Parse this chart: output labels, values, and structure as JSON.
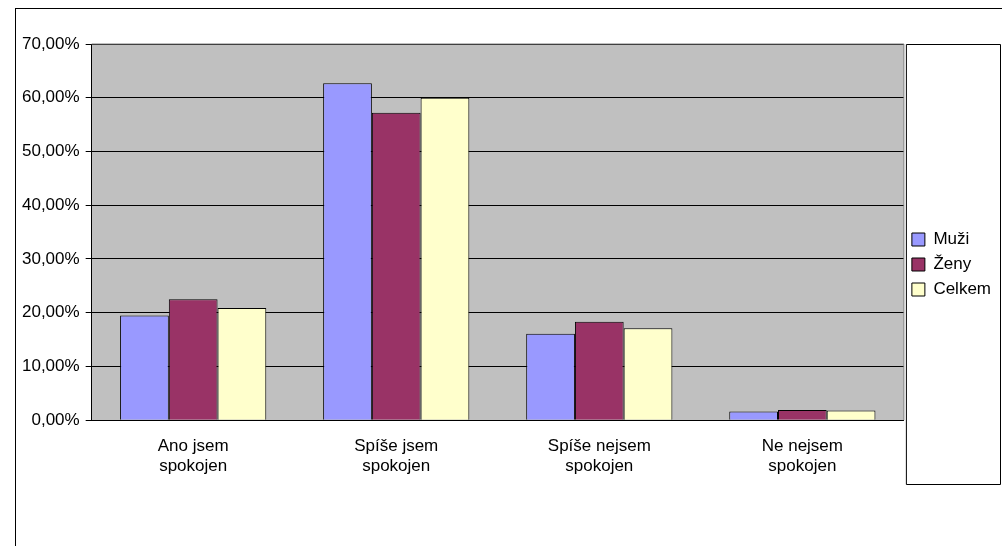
{
  "chart_data": {
    "type": "bar",
    "categories": [
      "Ano jsem spokojen",
      "Spíše jsem spokojen",
      "Spíše nejsem spokojen",
      "Ne nejsem spokojen"
    ],
    "series": [
      {
        "name": "Muži",
        "color": "#9999ff",
        "values": [
          19.5,
          62.7,
          16.1,
          1.6
        ]
      },
      {
        "name": "Ženy",
        "color": "#993366",
        "values": [
          22.5,
          57.2,
          18.3,
          1.9
        ]
      },
      {
        "name": "Celkem",
        "color": "#ffffcc",
        "values": [
          20.9,
          60.0,
          17.1,
          1.8
        ]
      }
    ],
    "ylim": [
      0,
      70
    ],
    "yticks": [
      {
        "value": 0,
        "label": "0,00%"
      },
      {
        "value": 10,
        "label": "10,00%"
      },
      {
        "value": 20,
        "label": "20,00%"
      },
      {
        "value": 30,
        "label": "30,00%"
      },
      {
        "value": 40,
        "label": "40,00%"
      },
      {
        "value": 50,
        "label": "50,00%"
      },
      {
        "value": 60,
        "label": "60,00%"
      },
      {
        "value": 70,
        "label": "70,00%"
      }
    ],
    "grid": "y",
    "legend": "right"
  }
}
